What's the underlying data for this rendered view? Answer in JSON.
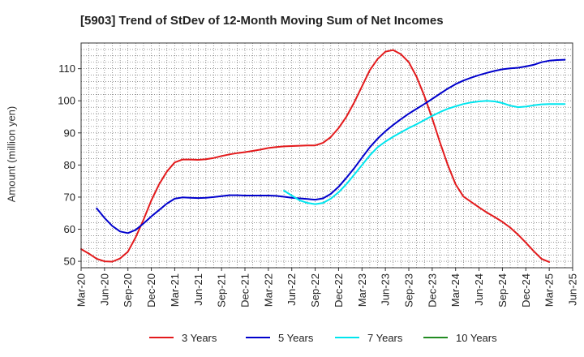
{
  "title": "[5903]  Trend of StDev of 12-Month Moving Sum of Net Incomes",
  "chart_data": {
    "type": "line",
    "title": "[5903]  Trend of StDev of 12-Month Moving Sum of Net Incomes",
    "ylabel": "Amount (million yen)",
    "xlabel": "",
    "ylim": [
      48,
      118
    ],
    "yticks": [
      50,
      60,
      70,
      80,
      90,
      100,
      110
    ],
    "x_tick_labels": [
      "Mar-20",
      "Jun-20",
      "Sep-20",
      "Dec-20",
      "Mar-21",
      "Jun-21",
      "Sep-21",
      "Dec-21",
      "Mar-22",
      "Jun-22",
      "Sep-22",
      "Dec-22",
      "Mar-23",
      "Jun-23",
      "Sep-23",
      "Dec-23",
      "Mar-24",
      "Jun-24",
      "Sep-24",
      "Dec-24",
      "Mar-25",
      "Jun-25"
    ],
    "grid": true,
    "legend_position": "bottom",
    "series": [
      {
        "name": "3 Years",
        "color": "#e31a1c",
        "points": [
          [
            "Mar-20",
            53.8
          ],
          [
            "Apr-20",
            52.4
          ],
          [
            "May-20",
            50.8
          ],
          [
            "Jun-20",
            50.0
          ],
          [
            "Jul-20",
            49.9
          ],
          [
            "Aug-20",
            50.9
          ],
          [
            "Sep-20",
            53.0
          ],
          [
            "Oct-20",
            57.5
          ],
          [
            "Nov-20",
            63.0
          ],
          [
            "Dec-20",
            69.0
          ],
          [
            "Jan-21",
            74.0
          ],
          [
            "Feb-21",
            78.0
          ],
          [
            "Mar-21",
            80.8
          ],
          [
            "Apr-21",
            81.7
          ],
          [
            "May-21",
            81.7
          ],
          [
            "Jun-21",
            81.6
          ],
          [
            "Jul-21",
            81.8
          ],
          [
            "Aug-21",
            82.2
          ],
          [
            "Sep-21",
            82.8
          ],
          [
            "Oct-21",
            83.3
          ],
          [
            "Nov-21",
            83.7
          ],
          [
            "Dec-21",
            84.0
          ],
          [
            "Jan-22",
            84.4
          ],
          [
            "Feb-22",
            84.8
          ],
          [
            "Mar-22",
            85.3
          ],
          [
            "Apr-22",
            85.6
          ],
          [
            "May-22",
            85.8
          ],
          [
            "Jun-22",
            85.9
          ],
          [
            "Jul-22",
            86.0
          ],
          [
            "Aug-22",
            86.1
          ],
          [
            "Sep-22",
            86.1
          ],
          [
            "Oct-22",
            86.9
          ],
          [
            "Nov-22",
            88.7
          ],
          [
            "Dec-22",
            91.5
          ],
          [
            "Jan-23",
            95.0
          ],
          [
            "Feb-23",
            99.5
          ],
          [
            "Mar-23",
            104.5
          ],
          [
            "Apr-23",
            109.5
          ],
          [
            "May-23",
            113.0
          ],
          [
            "Jun-23",
            115.3
          ],
          [
            "Jul-23",
            115.8
          ],
          [
            "Aug-23",
            114.5
          ],
          [
            "Sep-23",
            112.0
          ],
          [
            "Oct-23",
            107.5
          ],
          [
            "Nov-23",
            101.5
          ],
          [
            "Dec-23",
            94.5
          ],
          [
            "Jan-24",
            87.0
          ],
          [
            "Feb-24",
            80.0
          ],
          [
            "Mar-24",
            74.0
          ],
          [
            "Apr-24",
            70.2
          ],
          [
            "May-24",
            68.5
          ],
          [
            "Jun-24",
            66.8
          ],
          [
            "Jul-24",
            65.2
          ],
          [
            "Aug-24",
            63.8
          ],
          [
            "Sep-24",
            62.3
          ],
          [
            "Oct-24",
            60.5
          ],
          [
            "Nov-24",
            58.3
          ],
          [
            "Dec-24",
            55.8
          ],
          [
            "Jan-25",
            53.2
          ],
          [
            "Feb-25",
            50.8
          ],
          [
            "Mar-25",
            49.8
          ]
        ]
      },
      {
        "name": "5 Years",
        "color": "#0000cc",
        "points": [
          [
            "May-20",
            66.5
          ],
          [
            "Jun-20",
            63.5
          ],
          [
            "Jul-20",
            61.0
          ],
          [
            "Aug-20",
            59.3
          ],
          [
            "Sep-20",
            58.8
          ],
          [
            "Oct-20",
            59.8
          ],
          [
            "Nov-20",
            61.8
          ],
          [
            "Dec-20",
            64.0
          ],
          [
            "Jan-21",
            66.0
          ],
          [
            "Feb-21",
            68.0
          ],
          [
            "Mar-21",
            69.5
          ],
          [
            "Apr-21",
            69.9
          ],
          [
            "May-21",
            69.8
          ],
          [
            "Jun-21",
            69.7
          ],
          [
            "Jul-21",
            69.8
          ],
          [
            "Aug-21",
            70.0
          ],
          [
            "Sep-21",
            70.3
          ],
          [
            "Oct-21",
            70.6
          ],
          [
            "Nov-21",
            70.6
          ],
          [
            "Dec-21",
            70.5
          ],
          [
            "Jan-22",
            70.5
          ],
          [
            "Feb-22",
            70.5
          ],
          [
            "Mar-22",
            70.5
          ],
          [
            "Apr-22",
            70.4
          ],
          [
            "May-22",
            70.1
          ],
          [
            "Jun-22",
            69.8
          ],
          [
            "Jul-22",
            69.6
          ],
          [
            "Aug-22",
            69.4
          ],
          [
            "Sep-22",
            69.2
          ],
          [
            "Oct-22",
            69.6
          ],
          [
            "Nov-22",
            71.0
          ],
          [
            "Dec-22",
            73.2
          ],
          [
            "Jan-23",
            76.0
          ],
          [
            "Feb-23",
            79.0
          ],
          [
            "Mar-23",
            82.3
          ],
          [
            "Apr-23",
            85.5
          ],
          [
            "May-23",
            88.2
          ],
          [
            "Jun-23",
            90.5
          ],
          [
            "Jul-23",
            92.5
          ],
          [
            "Aug-23",
            94.3
          ],
          [
            "Sep-23",
            96.0
          ],
          [
            "Oct-23",
            97.5
          ],
          [
            "Nov-23",
            99.0
          ],
          [
            "Dec-23",
            100.6
          ],
          [
            "Jan-24",
            102.2
          ],
          [
            "Feb-24",
            103.8
          ],
          [
            "Mar-24",
            105.2
          ],
          [
            "Apr-24",
            106.3
          ],
          [
            "May-24",
            107.2
          ],
          [
            "Jun-24",
            108.0
          ],
          [
            "Jul-24",
            108.7
          ],
          [
            "Aug-24",
            109.3
          ],
          [
            "Sep-24",
            109.8
          ],
          [
            "Oct-24",
            110.1
          ],
          [
            "Nov-24",
            110.3
          ],
          [
            "Dec-24",
            110.7
          ],
          [
            "Jan-25",
            111.2
          ],
          [
            "Feb-25",
            112.0
          ],
          [
            "Mar-25",
            112.5
          ],
          [
            "Apr-25",
            112.7
          ],
          [
            "May-25",
            112.8
          ]
        ]
      },
      {
        "name": "7 Years",
        "color": "#00e5ee",
        "points": [
          [
            "May-22",
            72.0
          ],
          [
            "Jun-22",
            70.5
          ],
          [
            "Jul-22",
            69.0
          ],
          [
            "Aug-22",
            68.2
          ],
          [
            "Sep-22",
            67.8
          ],
          [
            "Oct-22",
            68.2
          ],
          [
            "Nov-22",
            69.5
          ],
          [
            "Dec-22",
            71.5
          ],
          [
            "Jan-23",
            74.0
          ],
          [
            "Feb-23",
            77.0
          ],
          [
            "Mar-23",
            80.0
          ],
          [
            "Apr-23",
            83.0
          ],
          [
            "May-23",
            85.5
          ],
          [
            "Jun-23",
            87.3
          ],
          [
            "Jul-23",
            88.8
          ],
          [
            "Aug-23",
            90.2
          ],
          [
            "Sep-23",
            91.5
          ],
          [
            "Oct-23",
            92.7
          ],
          [
            "Nov-23",
            94.0
          ],
          [
            "Dec-23",
            95.3
          ],
          [
            "Jan-24",
            96.5
          ],
          [
            "Feb-24",
            97.5
          ],
          [
            "Mar-24",
            98.3
          ],
          [
            "Apr-24",
            99.0
          ],
          [
            "May-24",
            99.5
          ],
          [
            "Jun-24",
            99.8
          ],
          [
            "Jul-24",
            100.0
          ],
          [
            "Aug-24",
            99.8
          ],
          [
            "Sep-24",
            99.3
          ],
          [
            "Oct-24",
            98.5
          ],
          [
            "Nov-24",
            98.0
          ],
          [
            "Dec-24",
            98.2
          ],
          [
            "Jan-25",
            98.6
          ],
          [
            "Feb-25",
            98.9
          ],
          [
            "Mar-25",
            99.0
          ],
          [
            "Apr-25",
            99.0
          ],
          [
            "May-25",
            99.0
          ]
        ]
      },
      {
        "name": "10 Years",
        "color": "#228b22",
        "points": []
      }
    ]
  }
}
